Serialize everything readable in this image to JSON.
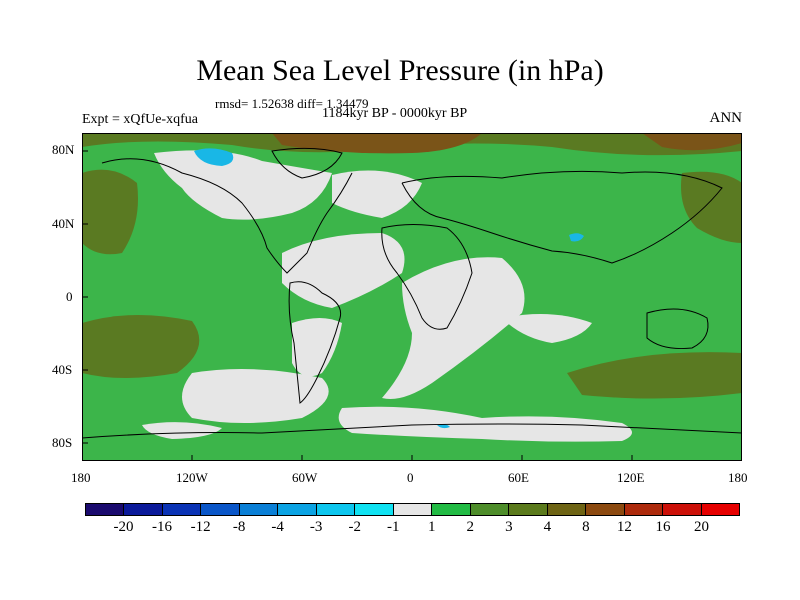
{
  "title": "Mean Sea Level Pressure (in hPa)",
  "stats": "rmsd= 1.52638 diff= 1.34479",
  "period": "1184kyr BP - 0000kyr BP",
  "experiment": "Expt = xQfUe-xqfua",
  "season": "ANN",
  "lat_labels": [
    "80N",
    "40N",
    "0",
    "40S",
    "80S"
  ],
  "lon_labels": [
    "180",
    "120W",
    "60W",
    "0",
    "60E",
    "120E",
    "180"
  ],
  "colorbar": {
    "labels": [
      "-20",
      "-16",
      "-12",
      "-8",
      "-4",
      "-3",
      "-2",
      "-1",
      "1",
      "2",
      "3",
      "4",
      "8",
      "12",
      "16",
      "20"
    ],
    "colors": [
      "#1a0a6e",
      "#0b1a9a",
      "#0a33b5",
      "#0a56c8",
      "#0a7fd6",
      "#0ba3e3",
      "#0dc6ee",
      "#10e2f2",
      "#e6e6e6",
      "#22bb44",
      "#4e8d2a",
      "#5b7a1c",
      "#6e6414",
      "#8c4a10",
      "#ad2a0c",
      "#cc1008",
      "#e60000"
    ]
  },
  "map_colors": {
    "green": "#3cb54a",
    "light_green": "#5cc05a",
    "olive": "#5a7a22",
    "brown": "#7a5418",
    "gray": "#e6e6e6",
    "cyan": "#19b7e6",
    "coast": "#000000"
  }
}
